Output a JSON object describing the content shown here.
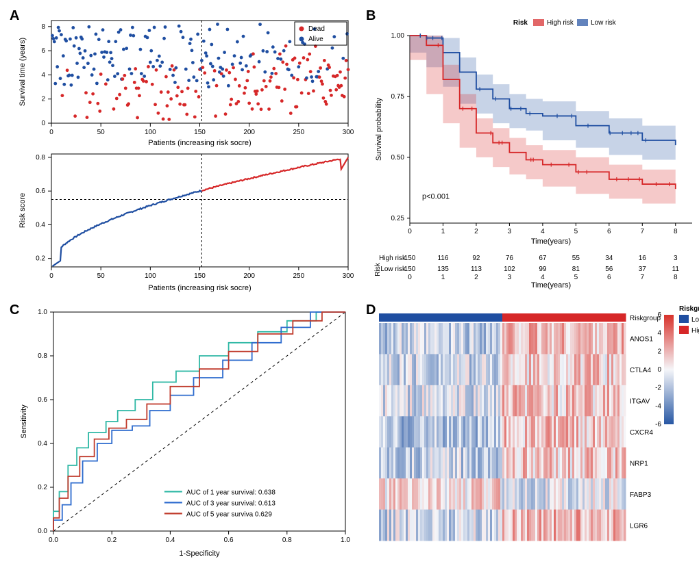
{
  "colors": {
    "red": "#d62728",
    "blue": "#1f4ea1",
    "teal": "#2fb8a5",
    "roc_blue": "#2d6bce",
    "roc_red": "#c03a2b",
    "black": "#000000",
    "grid_gray": "#e0e0e0",
    "heat_blue": "#2757a4",
    "heat_white": "#f5f6f9",
    "heat_red": "#d8322b"
  },
  "panelA": {
    "label": "A",
    "scatter": {
      "xlabel": "Patients (increasing risk socre)",
      "ylabel": "Survival time (years)",
      "xlim": [
        0,
        300
      ],
      "xticks": [
        0,
        50,
        100,
        150,
        200,
        250,
        300
      ],
      "ylim": [
        0,
        8.5
      ],
      "yticks": [
        0,
        2,
        4,
        6,
        8
      ],
      "cutoff_x": 152,
      "legend": {
        "dead_label": "Dead",
        "alive_label": "Alive"
      }
    },
    "risk": {
      "xlabel": "Patients (increasing risk socre)",
      "ylabel": "Risk score",
      "xlim": [
        0,
        300
      ],
      "xticks": [
        0,
        50,
        100,
        150,
        200,
        250,
        300
      ],
      "ylim": [
        0.15,
        0.82
      ],
      "yticks": [
        0.2,
        0.4,
        0.6,
        0.8
      ],
      "cutoff_x": 152,
      "cutoff_y": 0.55
    }
  },
  "panelB": {
    "label": "B",
    "legend_title": "Risk",
    "high_label": "High risk",
    "low_label": "Low risk",
    "ylabel": "Survival probability",
    "xlabel": "Time(years)",
    "xlim": [
      0,
      8.5
    ],
    "xticks": [
      0,
      1,
      2,
      3,
      4,
      5,
      6,
      7,
      8
    ],
    "ylim": [
      0.23,
      1.0
    ],
    "yticks": [
      0.25,
      0.5,
      0.75,
      1.0
    ],
    "pvalue": "p<0.001",
    "km_high": [
      [
        0,
        1.0
      ],
      [
        0.5,
        0.96
      ],
      [
        1,
        0.82
      ],
      [
        1.5,
        0.7
      ],
      [
        2,
        0.6
      ],
      [
        2.5,
        0.56
      ],
      [
        3,
        0.52
      ],
      [
        3.5,
        0.49
      ],
      [
        4,
        0.47
      ],
      [
        5,
        0.44
      ],
      [
        6,
        0.41
      ],
      [
        7,
        0.39
      ],
      [
        8,
        0.37
      ]
    ],
    "km_low": [
      [
        0,
        1.0
      ],
      [
        0.5,
        0.99
      ],
      [
        1,
        0.93
      ],
      [
        1.5,
        0.85
      ],
      [
        2,
        0.78
      ],
      [
        2.5,
        0.74
      ],
      [
        3,
        0.7
      ],
      [
        3.5,
        0.68
      ],
      [
        4,
        0.67
      ],
      [
        5,
        0.63
      ],
      [
        6,
        0.6
      ],
      [
        7,
        0.57
      ],
      [
        8,
        0.55
      ]
    ],
    "ci_high_band": 0.06,
    "ci_low_band": 0.06,
    "risk_table": {
      "title": "Risk",
      "xlabel": "Time(years)",
      "rows": [
        {
          "name": "High risk",
          "color": "#d62728",
          "vals": [
            150,
            116,
            92,
            76,
            67,
            55,
            34,
            16,
            3
          ]
        },
        {
          "name": "Low risk",
          "color": "#1f4ea1",
          "vals": [
            150,
            135,
            113,
            102,
            99,
            81,
            56,
            37,
            11
          ]
        }
      ]
    }
  },
  "panelC": {
    "label": "C",
    "xlabel": "1-Specificity",
    "ylabel": "Sensitivity",
    "lim": [
      0,
      1
    ],
    "ticks": [
      0.0,
      0.2,
      0.4,
      0.6,
      0.8,
      1.0
    ],
    "legend": [
      {
        "label": "AUC of 1 year survival: 0.638",
        "color": "#2fb8a5"
      },
      {
        "label": "AUC of 3 year survival: 0.613",
        "color": "#2d6bce"
      },
      {
        "label": "AUC of 5 year surviva  0.629",
        "color": "#c03a2b"
      }
    ],
    "roc1": [
      [
        0,
        0
      ],
      [
        0.02,
        0.09
      ],
      [
        0.05,
        0.18
      ],
      [
        0.08,
        0.3
      ],
      [
        0.12,
        0.38
      ],
      [
        0.18,
        0.45
      ],
      [
        0.22,
        0.5
      ],
      [
        0.28,
        0.55
      ],
      [
        0.34,
        0.6
      ],
      [
        0.42,
        0.68
      ],
      [
        0.5,
        0.73
      ],
      [
        0.6,
        0.8
      ],
      [
        0.7,
        0.86
      ],
      [
        0.8,
        0.91
      ],
      [
        0.9,
        0.96
      ],
      [
        1,
        1
      ]
    ],
    "roc3": [
      [
        0,
        0
      ],
      [
        0.03,
        0.05
      ],
      [
        0.06,
        0.12
      ],
      [
        0.1,
        0.22
      ],
      [
        0.15,
        0.32
      ],
      [
        0.2,
        0.4
      ],
      [
        0.27,
        0.46
      ],
      [
        0.33,
        0.48
      ],
      [
        0.4,
        0.55
      ],
      [
        0.48,
        0.62
      ],
      [
        0.58,
        0.7
      ],
      [
        0.68,
        0.78
      ],
      [
        0.78,
        0.86
      ],
      [
        0.88,
        0.93
      ],
      [
        1,
        1
      ]
    ],
    "roc5": [
      [
        0,
        0
      ],
      [
        0.02,
        0.06
      ],
      [
        0.05,
        0.15
      ],
      [
        0.09,
        0.25
      ],
      [
        0.14,
        0.34
      ],
      [
        0.19,
        0.42
      ],
      [
        0.25,
        0.47
      ],
      [
        0.32,
        0.51
      ],
      [
        0.4,
        0.58
      ],
      [
        0.5,
        0.66
      ],
      [
        0.6,
        0.74
      ],
      [
        0.7,
        0.82
      ],
      [
        0.82,
        0.9
      ],
      [
        0.92,
        0.96
      ],
      [
        1,
        1
      ]
    ]
  },
  "panelD": {
    "label": "D",
    "riskgroup_title": "Riskgroup",
    "low_label": "Low",
    "high_label": "High",
    "scale_ticks": [
      -6,
      -4,
      -2,
      0,
      2,
      4,
      6
    ],
    "genes": [
      "ANOS1",
      "CTLA4",
      "ITGAV",
      "CXCR4",
      "NRP1",
      "FABP3",
      "LGR6"
    ],
    "riskgroup_row_label": "Riskgroup",
    "n_cols": 120,
    "split_at": 60
  }
}
